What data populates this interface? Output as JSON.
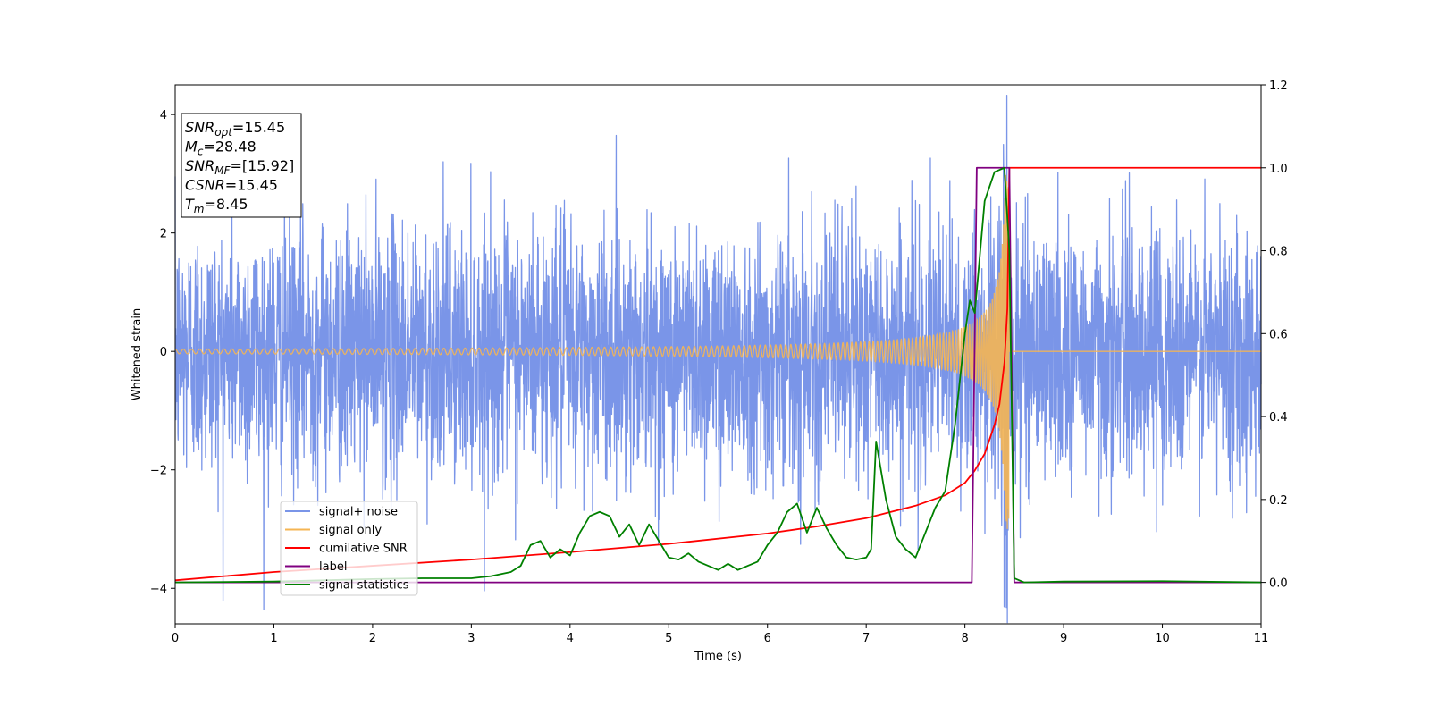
{
  "chart_data": {
    "type": "line",
    "title": "",
    "xlabel": "Time (s)",
    "ylabel": "Whitened strain",
    "ylabel_right": "",
    "xlim": [
      0,
      11
    ],
    "ylim": [
      -4.6,
      4.5
    ],
    "ylim_right": [
      -0.1,
      1.2
    ],
    "x_ticks": [
      0,
      1,
      2,
      3,
      4,
      5,
      6,
      7,
      8,
      9,
      10,
      11
    ],
    "y_ticks": [
      -4,
      -2,
      0,
      2,
      4
    ],
    "y_right_ticks": [
      0.0,
      0.2,
      0.4,
      0.6,
      0.8,
      1.0,
      1.2
    ],
    "grid": false,
    "legend_position": "lower-left",
    "annotation": [
      {
        "base": "SNR",
        "sub": "opt",
        "value": "=15.45"
      },
      {
        "base": "M",
        "sub": "c",
        "value": "=28.48"
      },
      {
        "base": "SNR",
        "sub": "MF",
        "value": "=[15.92]"
      },
      {
        "base": "CSNR",
        "sub": "",
        "value": "=15.45"
      },
      {
        "base": "T",
        "sub": "m",
        "value": "=8.45"
      }
    ],
    "series": [
      {
        "name": "signal+ noise",
        "color": "#7a95e8",
        "axis": "left",
        "kind": "noise",
        "sigma": 1.0,
        "range": [
          0,
          11
        ]
      },
      {
        "name": "signal only",
        "color": "#f5b553",
        "axis": "left",
        "kind": "chirp",
        "merger_time": 8.45,
        "range": [
          0,
          11
        ]
      },
      {
        "name": "cumilative SNR",
        "color": "#ff0000",
        "axis": "right",
        "x": [
          0,
          0.5,
          1,
          2,
          3,
          4,
          5,
          6,
          6.5,
          7,
          7.5,
          7.8,
          8.0,
          8.1,
          8.2,
          8.3,
          8.35,
          8.4,
          8.43,
          8.45,
          11
        ],
        "y": [
          0.005,
          0.015,
          0.025,
          0.04,
          0.055,
          0.073,
          0.093,
          0.118,
          0.135,
          0.155,
          0.185,
          0.21,
          0.24,
          0.27,
          0.31,
          0.38,
          0.43,
          0.53,
          0.66,
          1.0,
          1.0
        ]
      },
      {
        "name": "label",
        "color": "#800080",
        "axis": "right",
        "x": [
          0,
          8.07,
          8.12,
          8.45,
          8.5,
          11
        ],
        "y": [
          0,
          0,
          1,
          1,
          0,
          0
        ]
      },
      {
        "name": "signal statistics",
        "color": "#008000",
        "axis": "right",
        "x": [
          0,
          1,
          1.5,
          2,
          2.5,
          3,
          3.2,
          3.4,
          3.5,
          3.6,
          3.7,
          3.8,
          3.9,
          4.0,
          4.1,
          4.2,
          4.3,
          4.4,
          4.5,
          4.6,
          4.7,
          4.8,
          4.9,
          5.0,
          5.1,
          5.2,
          5.3,
          5.4,
          5.5,
          5.6,
          5.7,
          5.8,
          5.9,
          6.0,
          6.1,
          6.2,
          6.3,
          6.4,
          6.5,
          6.6,
          6.7,
          6.8,
          6.9,
          7.0,
          7.05,
          7.1,
          7.2,
          7.3,
          7.4,
          7.5,
          7.6,
          7.7,
          7.8,
          7.9,
          8.0,
          8.05,
          8.1,
          8.2,
          8.3,
          8.4,
          8.45,
          8.5,
          8.6,
          9,
          10,
          11
        ],
        "y": [
          0,
          0.002,
          0.005,
          0.008,
          0.01,
          0.01,
          0.015,
          0.025,
          0.04,
          0.09,
          0.1,
          0.06,
          0.08,
          0.065,
          0.12,
          0.16,
          0.17,
          0.16,
          0.11,
          0.14,
          0.09,
          0.14,
          0.1,
          0.06,
          0.055,
          0.07,
          0.05,
          0.04,
          0.03,
          0.045,
          0.03,
          0.04,
          0.05,
          0.09,
          0.12,
          0.17,
          0.19,
          0.12,
          0.18,
          0.13,
          0.09,
          0.06,
          0.055,
          0.06,
          0.08,
          0.34,
          0.2,
          0.11,
          0.08,
          0.06,
          0.12,
          0.18,
          0.22,
          0.38,
          0.6,
          0.68,
          0.65,
          0.92,
          0.99,
          1.0,
          0.8,
          0.01,
          0.0,
          0.002,
          0.003,
          0.0
        ]
      }
    ]
  }
}
